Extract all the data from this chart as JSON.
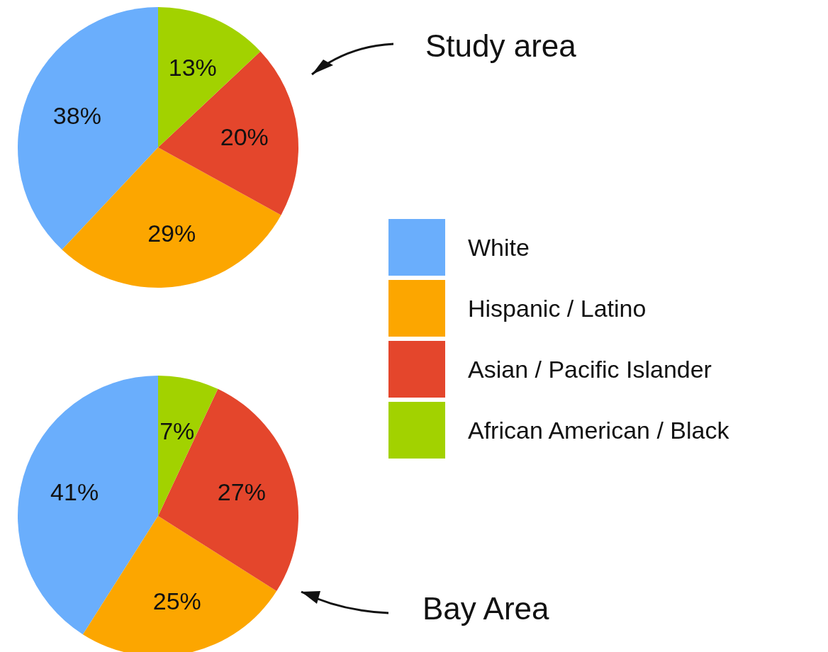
{
  "chart_data": {
    "type": "pie",
    "categories": [
      "White",
      "Hispanic / Latino",
      "Asian / Pacific Islander",
      "African American / Black"
    ],
    "colors": [
      "#6aaefc",
      "#fca600",
      "#e4462c",
      "#a2d200"
    ],
    "legend": "right",
    "series": [
      {
        "name": "Study area",
        "values": [
          38,
          29,
          20,
          13
        ],
        "value_labels": [
          "38%",
          "29%",
          "20%",
          "13%"
        ]
      },
      {
        "name": "Bay Area",
        "values": [
          41,
          25,
          27,
          7
        ],
        "value_labels": [
          "41%",
          "25%",
          "27%",
          "7%"
        ]
      }
    ]
  }
}
